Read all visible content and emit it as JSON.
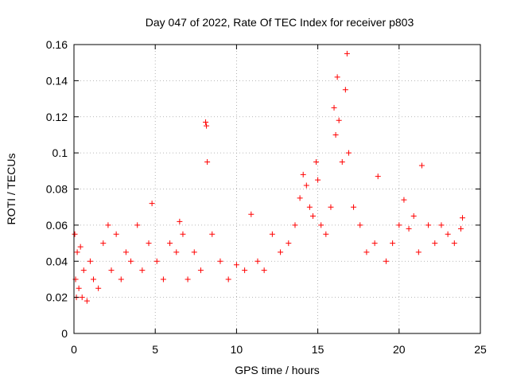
{
  "chart_data": {
    "type": "scatter",
    "title": "Day 047 of 2022, Rate Of TEC Index for receiver p803",
    "xlabel": "GPS time / hours",
    "ylabel": "ROTI / TECUs",
    "xlim": [
      0,
      25
    ],
    "ylim": [
      0,
      0.16
    ],
    "xticks": [
      0,
      5,
      10,
      15,
      20,
      25
    ],
    "yticks": [
      0,
      0.02,
      0.04,
      0.06,
      0.08,
      0.1,
      0.12,
      0.14,
      0.16
    ],
    "xtick_labels": [
      "0",
      "5",
      "10",
      "15",
      "20",
      "25"
    ],
    "ytick_labels": [
      "0",
      "0.02",
      "0.04",
      "0.06",
      "0.08",
      "0.1",
      "0.12",
      "0.14",
      "0.16"
    ],
    "grid": true,
    "marker": "+",
    "color": "#ff0000",
    "series": [
      {
        "x": [
          0.05,
          0.1,
          0.15,
          0.2,
          0.3,
          0.4,
          0.5,
          0.6,
          0.8,
          1.0,
          1.2,
          1.5,
          1.8,
          2.1,
          2.3,
          2.6,
          2.9,
          3.2,
          3.5,
          3.9,
          4.2,
          4.6,
          4.8,
          5.1,
          5.5,
          5.9,
          6.3,
          6.5,
          6.7,
          7.0,
          7.4,
          7.8,
          8.1,
          8.15,
          8.2,
          8.5,
          9.0,
          9.5,
          10.0,
          10.5,
          10.9,
          11.3,
          11.7,
          12.2,
          12.7,
          13.2,
          13.6,
          13.9,
          14.1,
          14.3,
          14.5,
          14.7,
          14.9,
          15.0,
          15.2,
          15.5,
          15.8,
          16.0,
          16.1,
          16.2,
          16.3,
          16.5,
          16.7,
          16.8,
          16.9,
          17.2,
          17.6,
          18.0,
          18.5,
          18.7,
          19.2,
          19.6,
          20.0,
          20.3,
          20.6,
          20.9,
          21.2,
          21.4,
          21.8,
          22.2,
          22.6,
          23.0,
          23.4,
          23.8,
          23.9
        ],
        "y": [
          0.055,
          0.03,
          0.02,
          0.045,
          0.025,
          0.048,
          0.02,
          0.035,
          0.018,
          0.04,
          0.03,
          0.025,
          0.05,
          0.06,
          0.035,
          0.055,
          0.03,
          0.045,
          0.04,
          0.06,
          0.035,
          0.05,
          0.072,
          0.04,
          0.03,
          0.05,
          0.045,
          0.062,
          0.055,
          0.03,
          0.045,
          0.035,
          0.117,
          0.115,
          0.095,
          0.055,
          0.04,
          0.03,
          0.038,
          0.035,
          0.066,
          0.04,
          0.035,
          0.055,
          0.045,
          0.05,
          0.06,
          0.075,
          0.088,
          0.082,
          0.07,
          0.065,
          0.095,
          0.085,
          0.06,
          0.055,
          0.07,
          0.125,
          0.11,
          0.142,
          0.118,
          0.095,
          0.135,
          0.155,
          0.1,
          0.07,
          0.06,
          0.045,
          0.05,
          0.087,
          0.04,
          0.05,
          0.06,
          0.074,
          0.058,
          0.065,
          0.045,
          0.093,
          0.06,
          0.05,
          0.06,
          0.055,
          0.05,
          0.058,
          0.064
        ]
      }
    ]
  }
}
